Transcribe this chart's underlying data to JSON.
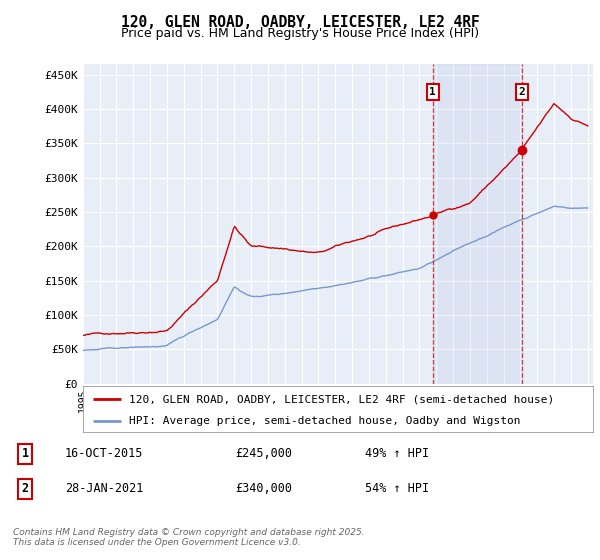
{
  "title": "120, GLEN ROAD, OADBY, LEICESTER, LE2 4RF",
  "subtitle": "Price paid vs. HM Land Registry's House Price Index (HPI)",
  "yticks": [
    0,
    50000,
    100000,
    150000,
    200000,
    250000,
    300000,
    350000,
    400000,
    450000
  ],
  "ytick_labels": [
    "£0",
    "£50K",
    "£100K",
    "£150K",
    "£200K",
    "£250K",
    "£300K",
    "£350K",
    "£400K",
    "£450K"
  ],
  "background_color": "#ffffff",
  "plot_bg_color": "#e8eef8",
  "grid_color": "#ffffff",
  "red_line_color": "#cc0000",
  "blue_line_color": "#7799cc",
  "annotation_box_color": "#cc0000",
  "sale1_date_idx": 20.79,
  "sale1_value": 245000,
  "sale1_label": "1",
  "sale1_date_str": "16-OCT-2015",
  "sale1_hpi": "49% ↑ HPI",
  "sale2_date_idx": 26.08,
  "sale2_value": 340000,
  "sale2_label": "2",
  "sale2_date_str": "28-JAN-2021",
  "sale2_hpi": "54% ↑ HPI",
  "legend_line1": "120, GLEN ROAD, OADBY, LEICESTER, LE2 4RF (semi-detached house)",
  "legend_line2": "HPI: Average price, semi-detached house, Oadby and Wigston",
  "footer": "Contains HM Land Registry data © Crown copyright and database right 2025.\nThis data is licensed under the Open Government Licence v3.0.",
  "start_year": 1995,
  "end_year": 2025
}
